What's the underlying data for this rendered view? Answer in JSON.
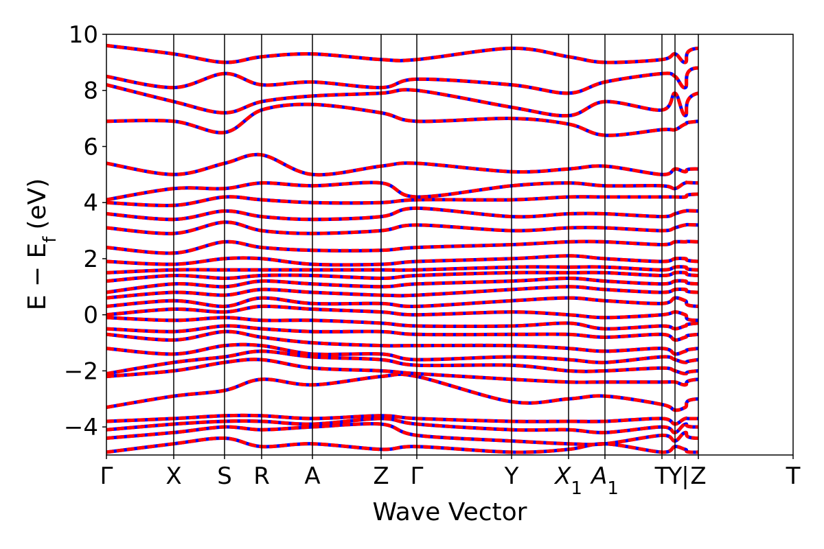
{
  "chart_data": {
    "type": "line",
    "xlabel": "Wave Vector",
    "ylabel": "E − E",
    "ylabel_sub": "f",
    "ylabel_unit": "(eV)",
    "ylim": [
      -5,
      10
    ],
    "yticks": [
      -4,
      -2,
      0,
      2,
      4,
      6,
      8,
      10
    ],
    "ytick_labels": [
      "−4",
      "−2",
      "0",
      "2",
      "4",
      "6",
      "8",
      "10"
    ],
    "xlim": [
      0,
      10
    ],
    "grid": false,
    "legend": "none",
    "high_symmetry_points": [
      {
        "label": "Γ",
        "x": 0.0
      },
      {
        "label": "X",
        "x": 0.98
      },
      {
        "label": "S",
        "x": 1.72
      },
      {
        "label": "R",
        "x": 2.26
      },
      {
        "label": "A",
        "x": 3.0
      },
      {
        "label": "Z",
        "x": 4.0
      },
      {
        "label": "Γ",
        "x": 4.52
      },
      {
        "label": "Y",
        "x": 5.9
      },
      {
        "label": "X",
        "sub": "1",
        "x": 6.73
      },
      {
        "label": "A",
        "sub": "1",
        "x": 7.26
      },
      {
        "label": "T",
        "x": 8.09
      },
      {
        "label": "Y",
        "x": 8.28
      },
      {
        "label": "|",
        "x": 8.43
      },
      {
        "label": "Z",
        "x": 8.62
      },
      {
        "label": "T",
        "x": 10.0
      }
    ],
    "series_styles": [
      {
        "color": "#0000ff",
        "style": "solid",
        "width": 5
      },
      {
        "color": "#ff0000",
        "style": "dashed",
        "width": 5
      }
    ],
    "bands": [
      [
        -4.9,
        -4.6,
        -4.4,
        -4.7,
        -4.6,
        -4.8,
        -4.7,
        -4.9,
        -4.8,
        -4.6,
        -4.9,
        -4.7,
        -4.8,
        -4.9,
        -4.7,
        -4.9
      ],
      [
        -4.4,
        -4.2,
        -4.0,
        -4.1,
        -4.0,
        -3.9,
        -4.3,
        -4.5,
        -4.6,
        -4.6,
        -4.3,
        -4.5,
        -4.2,
        -4.4,
        -4.2,
        -4.4
      ],
      [
        -4.1,
        -3.9,
        -3.8,
        -3.8,
        -3.9,
        -3.7,
        -3.9,
        -4.1,
        -4.1,
        -4.2,
        -4.0,
        -4.2,
        -3.9,
        -4.0,
        -3.8,
        -4.1
      ],
      [
        -3.8,
        -3.7,
        -3.6,
        -3.6,
        -3.7,
        -3.6,
        -3.7,
        -3.8,
        -3.8,
        -3.8,
        -3.7,
        -3.9,
        -3.7,
        -3.7,
        -3.6,
        -3.7
      ],
      [
        -3.3,
        -2.9,
        -2.7,
        -2.3,
        -2.5,
        -2.2,
        -2.2,
        -3.1,
        -3.0,
        -2.9,
        -3.2,
        -3.4,
        -3.3,
        -3.0,
        -3.1,
        -3.6
      ],
      [
        -2.2,
        -2.0,
        -1.7,
        -1.6,
        -1.9,
        -2.0,
        -2.1,
        -2.3,
        -2.4,
        -2.4,
        -2.4,
        -2.4,
        -2.5,
        -2.3,
        -2.2,
        -2.4
      ],
      [
        -2.1,
        -1.7,
        -1.5,
        -1.3,
        -1.5,
        -1.6,
        -1.8,
        -1.8,
        -2.0,
        -2.0,
        -1.9,
        -2.0,
        -2.1,
        -2.0,
        -1.8,
        -2.0
      ],
      [
        -1.2,
        -1.4,
        -1.1,
        -1.1,
        -1.4,
        -1.4,
        -1.6,
        -1.5,
        -1.6,
        -1.7,
        -1.5,
        -1.6,
        -1.7,
        -1.6,
        -1.2,
        -1.7
      ],
      [
        -0.7,
        -0.9,
        -0.6,
        -0.8,
        -1.0,
        -1.1,
        -1.1,
        -1.1,
        -1.2,
        -1.3,
        -1.2,
        -1.4,
        -1.3,
        -1.2,
        -0.9,
        -1.5
      ],
      [
        -0.5,
        -0.6,
        -0.4,
        -0.5,
        -0.6,
        -0.6,
        -0.7,
        -0.7,
        -0.7,
        -0.8,
        -0.7,
        -0.9,
        -0.8,
        -0.7,
        -0.5,
        -0.6
      ],
      [
        -0.1,
        -0.2,
        -0.1,
        -0.2,
        -0.2,
        -0.3,
        -0.4,
        -0.4,
        -0.3,
        -0.5,
        -0.4,
        -0.5,
        -0.4,
        -0.3,
        -0.1,
        -0.1
      ],
      [
        0.0,
        0.2,
        0.1,
        0.3,
        0.2,
        0.1,
        0.0,
        0.1,
        0.0,
        -0.1,
        0.0,
        0.1,
        0.0,
        -0.2,
        0.0,
        0.0
      ],
      [
        0.3,
        0.5,
        0.3,
        0.6,
        0.4,
        0.4,
        0.3,
        0.5,
        0.6,
        0.5,
        0.4,
        0.6,
        0.5,
        0.3,
        0.4,
        0.5
      ],
      [
        0.6,
        0.8,
        0.7,
        0.9,
        0.8,
        0.7,
        0.7,
        0.9,
        1.0,
        0.9,
        0.8,
        0.9,
        0.9,
        0.8,
        0.8,
        0.9
      ],
      [
        0.8,
        1.1,
        1.0,
        1.2,
        1.1,
        1.0,
        1.1,
        1.2,
        1.3,
        1.2,
        1.1,
        1.2,
        1.2,
        1.1,
        1.1,
        1.2
      ],
      [
        1.2,
        1.4,
        1.3,
        1.4,
        1.4,
        1.3,
        1.4,
        1.5,
        1.5,
        1.5,
        1.4,
        1.5,
        1.5,
        1.4,
        1.4,
        1.5
      ],
      [
        1.5,
        1.6,
        1.6,
        1.6,
        1.6,
        1.6,
        1.6,
        1.7,
        1.7,
        1.7,
        1.6,
        1.7,
        1.7,
        1.6,
        1.6,
        1.7
      ],
      [
        1.9,
        1.8,
        2.0,
        2.0,
        1.8,
        1.8,
        1.9,
        2.0,
        2.1,
        2.0,
        1.9,
        2.0,
        2.0,
        1.9,
        1.8,
        1.9
      ],
      [
        2.4,
        2.2,
        2.6,
        2.4,
        2.3,
        2.3,
        2.4,
        2.5,
        2.6,
        2.6,
        2.5,
        2.6,
        2.6,
        2.6,
        2.4,
        2.6
      ],
      [
        3.1,
        2.9,
        3.3,
        3.0,
        2.9,
        3.0,
        3.2,
        3.0,
        3.1,
        3.1,
        3.0,
        3.1,
        3.2,
        3.2,
        3.1,
        3.0
      ],
      [
        3.6,
        3.4,
        3.7,
        3.5,
        3.4,
        3.5,
        3.8,
        3.5,
        3.6,
        3.6,
        3.5,
        3.6,
        3.7,
        3.7,
        3.6,
        3.5
      ],
      [
        4.0,
        3.9,
        4.2,
        4.1,
        4.0,
        4.0,
        4.1,
        4.1,
        4.2,
        4.2,
        4.2,
        4.2,
        4.2,
        4.3,
        4.3,
        4.3
      ],
      [
        4.1,
        4.5,
        4.5,
        4.7,
        4.6,
        4.7,
        4.2,
        4.6,
        4.7,
        4.6,
        4.6,
        4.5,
        4.7,
        4.7,
        4.6,
        4.5
      ],
      [
        5.4,
        5.0,
        5.4,
        5.7,
        5.0,
        5.3,
        5.4,
        5.1,
        5.2,
        5.3,
        5.0,
        5.2,
        5.1,
        5.2,
        5.0,
        5.1
      ],
      [
        6.9,
        6.9,
        6.5,
        7.3,
        7.5,
        7.2,
        6.9,
        7.0,
        6.8,
        6.4,
        6.6,
        6.6,
        6.8,
        6.9,
        7.2,
        6.6
      ],
      [
        8.2,
        7.6,
        7.2,
        7.6,
        7.8,
        7.9,
        8.0,
        7.4,
        7.1,
        7.6,
        7.3,
        7.9,
        7.1,
        7.9,
        7.9,
        7.9
      ],
      [
        8.5,
        8.1,
        8.6,
        8.2,
        8.3,
        8.1,
        8.4,
        8.2,
        7.9,
        8.3,
        8.6,
        8.5,
        8.1,
        8.8,
        8.1,
        8.1
      ],
      [
        9.6,
        9.3,
        9.0,
        9.2,
        9.3,
        9.1,
        9.1,
        9.5,
        9.2,
        9.0,
        9.1,
        9.3,
        9.0,
        9.5,
        9.2,
        9.9
      ]
    ]
  }
}
